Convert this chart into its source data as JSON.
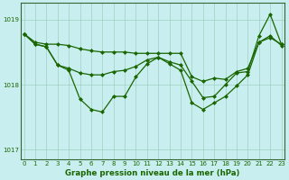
{
  "xlabel": "Graphe pression niveau de la mer (hPa)",
  "bg_color": "#c8eef0",
  "line_color": "#1a6600",
  "grid_color": "#a0d0c0",
  "text_color": "#1a6600",
  "border_color": "#336633",
  "ylim": [
    1016.85,
    1019.25
  ],
  "yticks": [
    1017,
    1018,
    1019
  ],
  "xlim": [
    -0.3,
    23.3
  ],
  "xticks": [
    0,
    1,
    2,
    3,
    4,
    5,
    6,
    7,
    8,
    9,
    10,
    11,
    12,
    13,
    14,
    15,
    16,
    17,
    18,
    19,
    20,
    21,
    22,
    23
  ],
  "series": [
    [
      1018.78,
      1018.65,
      1018.62,
      1018.62,
      1018.6,
      1018.55,
      1018.52,
      1018.5,
      1018.5,
      1018.5,
      1018.48,
      1018.48,
      1018.48,
      1018.48,
      1018.48,
      1018.12,
      1018.05,
      1018.1,
      1018.08,
      1018.2,
      1018.25,
      1018.65,
      1018.72,
      1018.62
    ],
    [
      1018.78,
      1018.62,
      1018.58,
      1018.3,
      1018.25,
      1018.18,
      1018.15,
      1018.15,
      1018.2,
      1018.22,
      1018.28,
      1018.38,
      1018.42,
      1018.35,
      1018.3,
      1018.05,
      1017.8,
      1017.82,
      1018.0,
      1018.18,
      1018.2,
      1018.75,
      1019.08,
      1018.62
    ],
    [
      1018.78,
      1018.62,
      1018.58,
      1018.3,
      1018.22,
      1017.78,
      1017.62,
      1017.58,
      1017.82,
      1017.82,
      1018.12,
      1018.32,
      1018.42,
      1018.32,
      1018.22,
      1017.72,
      1017.62,
      1017.72,
      1017.82,
      1017.98,
      1018.15,
      1018.65,
      1018.75,
      1018.6
    ]
  ],
  "marker": "D",
  "markersize": 2.0,
  "linewidth": 0.9,
  "xlabel_fontsize": 6.2,
  "tick_fontsize": 5.0,
  "xlabel_fontsize_y": 5.5
}
